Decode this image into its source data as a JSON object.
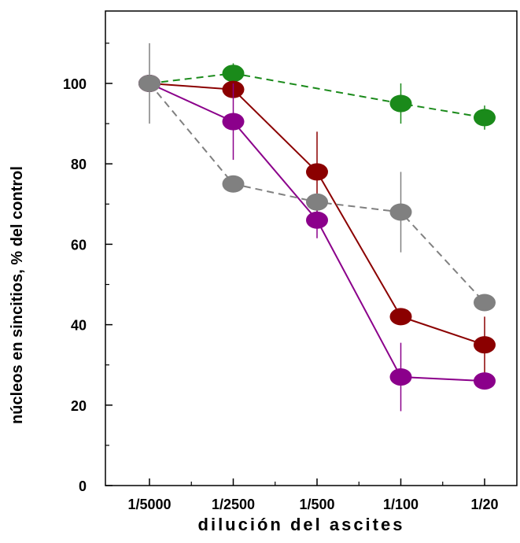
{
  "chart_data": {
    "type": "line",
    "xlabel": "dilución del ascites",
    "ylabel": "núcleos en sincitios, % del control",
    "categories": [
      "1/5000",
      "1/2500",
      "1/500",
      "1/100",
      "1/20"
    ],
    "ylim": [
      0,
      115
    ],
    "yticks": [
      0,
      20,
      40,
      60,
      80,
      100
    ],
    "grid": false,
    "series": [
      {
        "color": "#1a8a1a",
        "line_style": "dashed",
        "values": [
          100,
          102.5,
          null,
          95,
          91.5
        ],
        "errors": [
          null,
          2.5,
          null,
          5,
          3
        ]
      },
      {
        "color": "#8b0000",
        "line_style": "solid",
        "values": [
          100,
          98.5,
          78,
          42,
          35
        ],
        "errors": [
          null,
          2,
          10,
          null,
          7
        ]
      },
      {
        "color": "#8b008b",
        "line_style": "solid",
        "values": [
          100,
          90.5,
          66,
          27,
          26
        ],
        "errors": [
          null,
          9.5,
          4.5,
          8.5,
          null
        ]
      },
      {
        "color": "#808080",
        "line_style": "dashed",
        "values": [
          100,
          75,
          70.5,
          68,
          45.5
        ],
        "errors": [
          10,
          null,
          null,
          10,
          null
        ]
      }
    ]
  }
}
